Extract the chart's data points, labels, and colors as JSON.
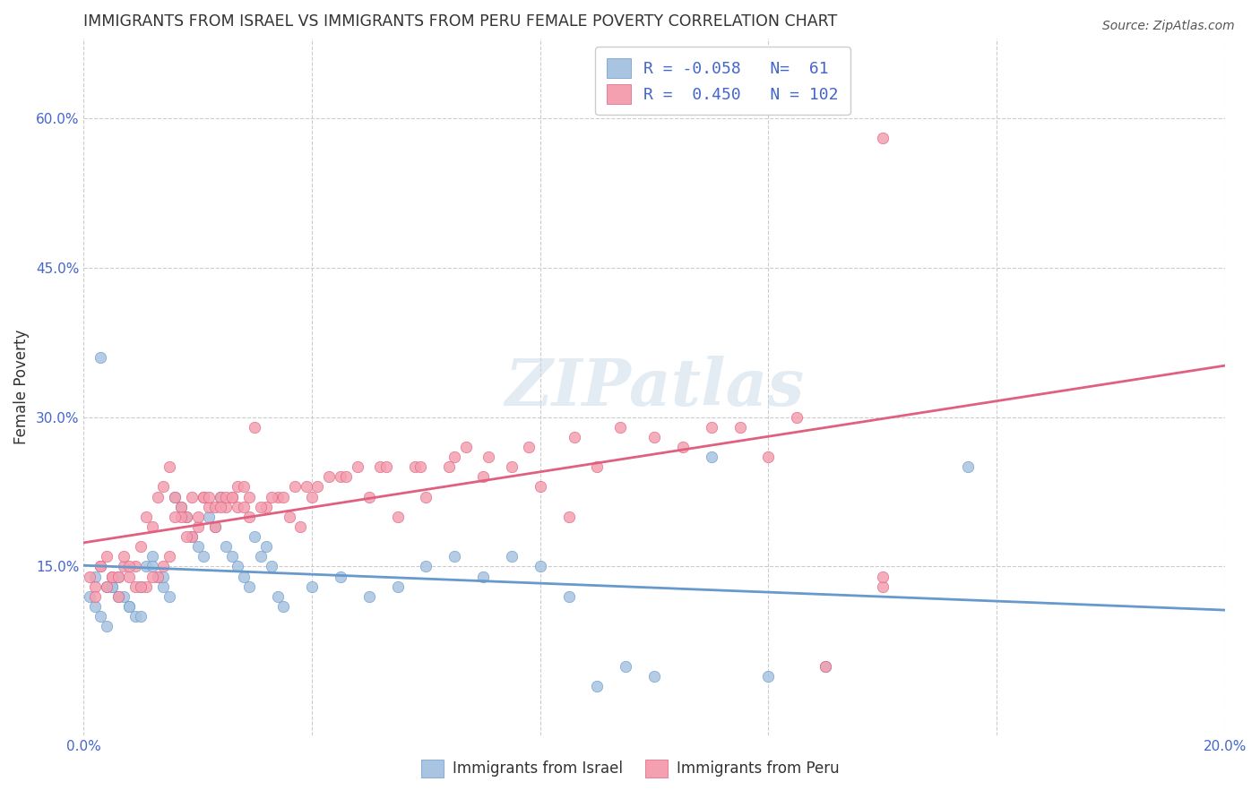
{
  "title": "IMMIGRANTS FROM ISRAEL VS IMMIGRANTS FROM PERU FEMALE POVERTY CORRELATION CHART",
  "source": "Source: ZipAtlas.com",
  "xlabel": "",
  "ylabel": "Female Poverty",
  "xlim": [
    0.0,
    0.2
  ],
  "ylim": [
    -0.02,
    0.68
  ],
  "yticks": [
    0.15,
    0.3,
    0.45,
    0.6
  ],
  "ytick_labels": [
    "15.0%",
    "30.0%",
    "45.0%",
    "60.0%"
  ],
  "xticks": [
    0.0,
    0.04,
    0.08,
    0.12,
    0.16,
    0.2
  ],
  "xtick_labels": [
    "0.0%",
    "",
    "",
    "",
    "",
    "20.0%"
  ],
  "israel_R": -0.058,
  "israel_N": 61,
  "peru_R": 0.45,
  "peru_N": 102,
  "israel_color": "#a8c4e0",
  "peru_color": "#f4a0b0",
  "israel_line_color": "#6699cc",
  "peru_line_color": "#e06080",
  "background_color": "#ffffff",
  "grid_color": "#cccccc",
  "title_color": "#333333",
  "watermark_text": "ZIPatlas",
  "watermark_color": "#c8d8e8",
  "legend_R_color": "#4466cc",
  "israel_scatter_x": [
    0.001,
    0.002,
    0.003,
    0.004,
    0.005,
    0.006,
    0.007,
    0.008,
    0.009,
    0.01,
    0.011,
    0.012,
    0.013,
    0.014,
    0.015,
    0.016,
    0.017,
    0.018,
    0.019,
    0.02,
    0.021,
    0.022,
    0.023,
    0.024,
    0.025,
    0.026,
    0.027,
    0.028,
    0.029,
    0.03,
    0.031,
    0.032,
    0.033,
    0.034,
    0.035,
    0.04,
    0.045,
    0.05,
    0.055,
    0.06,
    0.065,
    0.07,
    0.075,
    0.08,
    0.085,
    0.09,
    0.095,
    0.1,
    0.11,
    0.12,
    0.13,
    0.002,
    0.004,
    0.006,
    0.008,
    0.01,
    0.012,
    0.014,
    0.003,
    0.005,
    0.155
  ],
  "israel_scatter_y": [
    0.12,
    0.11,
    0.1,
    0.09,
    0.13,
    0.14,
    0.12,
    0.11,
    0.1,
    0.13,
    0.15,
    0.16,
    0.14,
    0.13,
    0.12,
    0.22,
    0.21,
    0.2,
    0.18,
    0.17,
    0.16,
    0.2,
    0.19,
    0.22,
    0.17,
    0.16,
    0.15,
    0.14,
    0.13,
    0.18,
    0.16,
    0.17,
    0.15,
    0.12,
    0.11,
    0.13,
    0.14,
    0.12,
    0.13,
    0.15,
    0.16,
    0.14,
    0.16,
    0.15,
    0.12,
    0.03,
    0.05,
    0.04,
    0.26,
    0.04,
    0.05,
    0.14,
    0.13,
    0.12,
    0.11,
    0.1,
    0.15,
    0.14,
    0.36,
    0.13,
    0.25
  ],
  "peru_scatter_x": [
    0.001,
    0.002,
    0.003,
    0.004,
    0.005,
    0.006,
    0.007,
    0.008,
    0.009,
    0.01,
    0.011,
    0.012,
    0.013,
    0.014,
    0.015,
    0.016,
    0.017,
    0.018,
    0.019,
    0.02,
    0.021,
    0.022,
    0.023,
    0.024,
    0.025,
    0.026,
    0.027,
    0.028,
    0.029,
    0.03,
    0.032,
    0.034,
    0.036,
    0.038,
    0.04,
    0.045,
    0.05,
    0.055,
    0.06,
    0.065,
    0.07,
    0.075,
    0.08,
    0.085,
    0.09,
    0.1,
    0.11,
    0.12,
    0.13,
    0.14,
    0.003,
    0.005,
    0.007,
    0.009,
    0.011,
    0.013,
    0.015,
    0.017,
    0.019,
    0.021,
    0.023,
    0.025,
    0.027,
    0.029,
    0.033,
    0.037,
    0.041,
    0.046,
    0.052,
    0.058,
    0.064,
    0.071,
    0.078,
    0.086,
    0.094,
    0.105,
    0.115,
    0.125,
    0.002,
    0.004,
    0.006,
    0.008,
    0.01,
    0.012,
    0.014,
    0.016,
    0.018,
    0.02,
    0.022,
    0.024,
    0.026,
    0.028,
    0.031,
    0.035,
    0.039,
    0.043,
    0.048,
    0.053,
    0.059,
    0.067,
    0.14,
    0.14
  ],
  "peru_scatter_y": [
    0.14,
    0.13,
    0.15,
    0.16,
    0.14,
    0.12,
    0.15,
    0.14,
    0.13,
    0.17,
    0.2,
    0.19,
    0.22,
    0.23,
    0.25,
    0.22,
    0.21,
    0.2,
    0.22,
    0.19,
    0.22,
    0.21,
    0.19,
    0.22,
    0.21,
    0.22,
    0.21,
    0.21,
    0.2,
    0.29,
    0.21,
    0.22,
    0.2,
    0.19,
    0.22,
    0.24,
    0.22,
    0.2,
    0.22,
    0.26,
    0.24,
    0.25,
    0.23,
    0.2,
    0.25,
    0.28,
    0.29,
    0.26,
    0.05,
    0.13,
    0.15,
    0.14,
    0.16,
    0.15,
    0.13,
    0.14,
    0.16,
    0.2,
    0.18,
    0.22,
    0.21,
    0.22,
    0.23,
    0.22,
    0.22,
    0.23,
    0.23,
    0.24,
    0.25,
    0.25,
    0.25,
    0.26,
    0.27,
    0.28,
    0.29,
    0.27,
    0.29,
    0.3,
    0.12,
    0.13,
    0.14,
    0.15,
    0.13,
    0.14,
    0.15,
    0.2,
    0.18,
    0.2,
    0.22,
    0.21,
    0.22,
    0.23,
    0.21,
    0.22,
    0.23,
    0.24,
    0.25,
    0.25,
    0.25,
    0.27,
    0.14,
    0.58
  ]
}
